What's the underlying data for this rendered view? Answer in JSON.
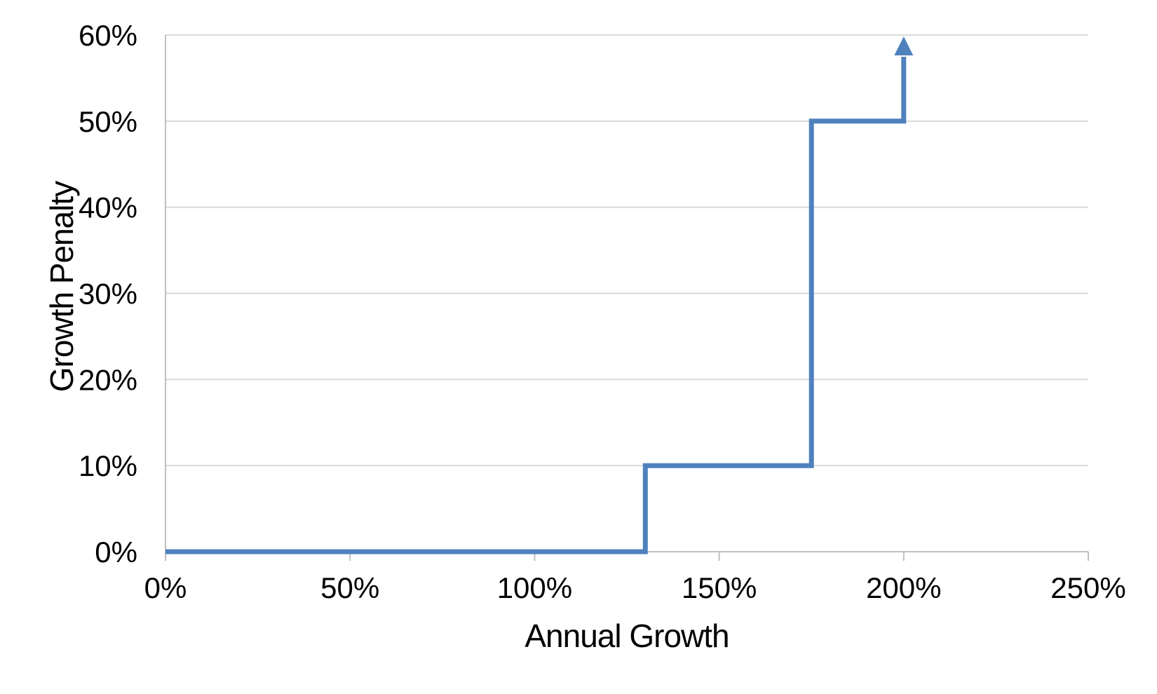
{
  "page": {
    "background": "#ffffff"
  },
  "chart_data": {
    "type": "line",
    "subtype": "step",
    "title": "",
    "xlabel": "Annual Growth",
    "ylabel": "Growth Penalty",
    "xlim": [
      0,
      250
    ],
    "ylim": [
      0,
      60
    ],
    "x_tick_values": [
      0,
      50,
      100,
      150,
      200,
      250
    ],
    "x_tick_labels": [
      "0%",
      "50%",
      "100%",
      "150%",
      "200%",
      "250%"
    ],
    "y_tick_values": [
      0,
      10,
      20,
      30,
      40,
      50,
      60
    ],
    "y_tick_labels": [
      "0%",
      "10%",
      "20%",
      "30%",
      "40%",
      "50%",
      "60%"
    ],
    "grid": "horizontal",
    "legend": "none",
    "series": [
      {
        "name": "Growth Penalty",
        "color": "#4F81BD",
        "points": [
          [
            0,
            0
          ],
          [
            130,
            0
          ],
          [
            130,
            10
          ],
          [
            175,
            10
          ],
          [
            175,
            50
          ],
          [
            200,
            50
          ]
        ]
      }
    ],
    "annotation_arrow": {
      "x": 200,
      "y_from": 50,
      "y_to": 60,
      "direction": "up"
    }
  },
  "style": {
    "line_color": "#4F81BD",
    "line_width": 7,
    "gridline_color": "#D9D9D9",
    "axis_color": "#BFBFBF",
    "text_color": "#000000"
  }
}
